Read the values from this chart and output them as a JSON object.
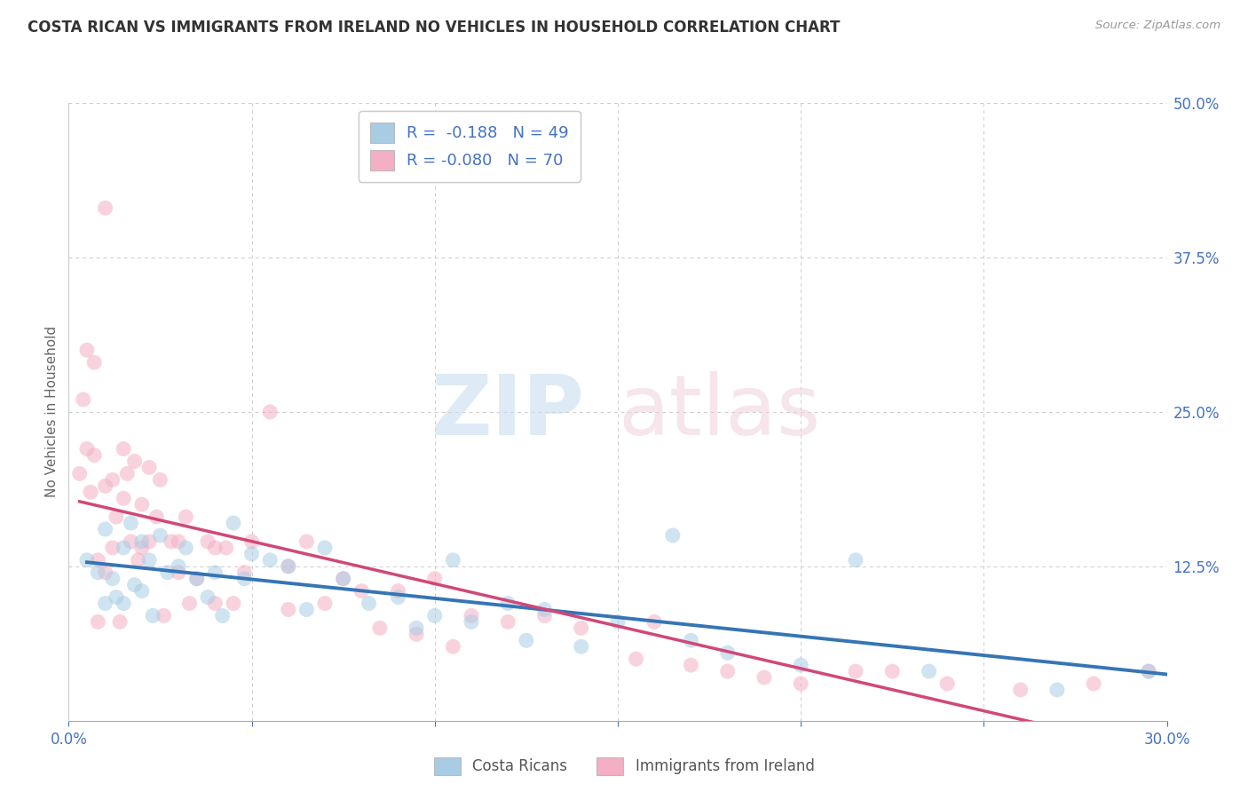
{
  "title": "COSTA RICAN VS IMMIGRANTS FROM IRELAND NO VEHICLES IN HOUSEHOLD CORRELATION CHART",
  "source": "Source: ZipAtlas.com",
  "ylabel": "No Vehicles in Household",
  "xlim": [
    0.0,
    0.3
  ],
  "ylim": [
    0.0,
    0.5
  ],
  "blue_color": "#a8cce4",
  "pink_color": "#f4afc4",
  "blue_line_color": "#3575b5",
  "pink_line_color": "#d04878",
  "legend_label_blue": "Costa Ricans",
  "legend_label_pink": "Immigrants from Ireland",
  "R_blue": -0.188,
  "N_blue": 49,
  "R_pink": -0.08,
  "N_pink": 70,
  "background_color": "#ffffff",
  "blue_scatter_x": [
    0.005,
    0.008,
    0.01,
    0.01,
    0.012,
    0.013,
    0.015,
    0.015,
    0.017,
    0.018,
    0.02,
    0.02,
    0.022,
    0.023,
    0.025,
    0.027,
    0.03,
    0.032,
    0.035,
    0.038,
    0.04,
    0.042,
    0.045,
    0.048,
    0.05,
    0.055,
    0.06,
    0.065,
    0.07,
    0.075,
    0.082,
    0.09,
    0.095,
    0.1,
    0.105,
    0.11,
    0.12,
    0.125,
    0.13,
    0.14,
    0.15,
    0.165,
    0.17,
    0.18,
    0.2,
    0.215,
    0.235,
    0.27,
    0.295
  ],
  "blue_scatter_y": [
    0.13,
    0.12,
    0.155,
    0.095,
    0.115,
    0.1,
    0.14,
    0.095,
    0.16,
    0.11,
    0.145,
    0.105,
    0.13,
    0.085,
    0.15,
    0.12,
    0.125,
    0.14,
    0.115,
    0.1,
    0.12,
    0.085,
    0.16,
    0.115,
    0.135,
    0.13,
    0.125,
    0.09,
    0.14,
    0.115,
    0.095,
    0.1,
    0.075,
    0.085,
    0.13,
    0.08,
    0.095,
    0.065,
    0.09,
    0.06,
    0.08,
    0.15,
    0.065,
    0.055,
    0.045,
    0.13,
    0.04,
    0.025,
    0.04
  ],
  "pink_scatter_x": [
    0.003,
    0.004,
    0.005,
    0.005,
    0.006,
    0.007,
    0.007,
    0.008,
    0.008,
    0.01,
    0.01,
    0.01,
    0.012,
    0.012,
    0.013,
    0.014,
    0.015,
    0.015,
    0.016,
    0.017,
    0.018,
    0.019,
    0.02,
    0.02,
    0.022,
    0.022,
    0.024,
    0.025,
    0.026,
    0.028,
    0.03,
    0.03,
    0.032,
    0.033,
    0.035,
    0.038,
    0.04,
    0.04,
    0.043,
    0.045,
    0.048,
    0.05,
    0.055,
    0.06,
    0.06,
    0.065,
    0.07,
    0.075,
    0.08,
    0.085,
    0.09,
    0.095,
    0.1,
    0.105,
    0.11,
    0.12,
    0.13,
    0.14,
    0.155,
    0.16,
    0.17,
    0.18,
    0.19,
    0.2,
    0.215,
    0.225,
    0.24,
    0.26,
    0.28,
    0.295
  ],
  "pink_scatter_y": [
    0.2,
    0.26,
    0.3,
    0.22,
    0.185,
    0.29,
    0.215,
    0.13,
    0.08,
    0.415,
    0.19,
    0.12,
    0.195,
    0.14,
    0.165,
    0.08,
    0.22,
    0.18,
    0.2,
    0.145,
    0.21,
    0.13,
    0.175,
    0.14,
    0.205,
    0.145,
    0.165,
    0.195,
    0.085,
    0.145,
    0.145,
    0.12,
    0.165,
    0.095,
    0.115,
    0.145,
    0.14,
    0.095,
    0.14,
    0.095,
    0.12,
    0.145,
    0.25,
    0.125,
    0.09,
    0.145,
    0.095,
    0.115,
    0.105,
    0.075,
    0.105,
    0.07,
    0.115,
    0.06,
    0.085,
    0.08,
    0.085,
    0.075,
    0.05,
    0.08,
    0.045,
    0.04,
    0.035,
    0.03,
    0.04,
    0.04,
    0.03,
    0.025,
    0.03,
    0.04
  ]
}
